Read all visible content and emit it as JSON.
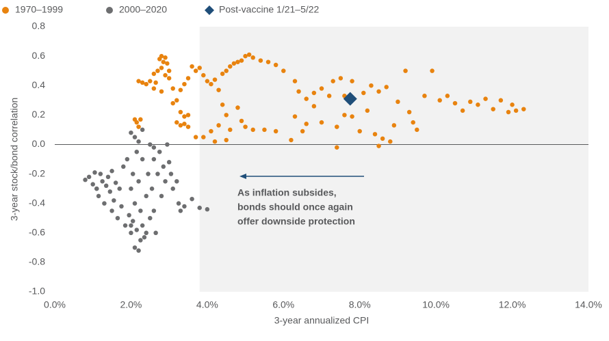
{
  "chart_data": {
    "type": "scatter",
    "xlabel": "3-year annualized CPI",
    "ylabel": "3-year stock/bond correlation",
    "xlim": [
      0,
      14
    ],
    "ylim": [
      -1,
      0.8
    ],
    "xticks": [
      {
        "value": 0,
        "label": "0.0%"
      },
      {
        "value": 2,
        "label": "2.0%"
      },
      {
        "value": 4,
        "label": "4.0%"
      },
      {
        "value": 6,
        "label": "6.0%"
      },
      {
        "value": 8,
        "label": "8.0%"
      },
      {
        "value": 10,
        "label": "10.0%"
      },
      {
        "value": 12,
        "label": "12.0%"
      },
      {
        "value": 14,
        "label": "14.0%"
      }
    ],
    "yticks": [
      0.8,
      0.6,
      0.4,
      0.2,
      {
        "value": 0,
        "label": "0.0"
      },
      -0.2,
      -0.4,
      -0.6,
      -0.8,
      {
        "value": -1,
        "label": "-1.0"
      }
    ],
    "shaded_xmin": 3.8,
    "annotation": [
      "As inflation subsides,",
      "bonds should once again",
      "offer downside protection"
    ],
    "series": [
      {
        "name": "1970–1999",
        "color": "#e8830f",
        "marker": "circle",
        "x": [
          2.1,
          2.15,
          2.2,
          2.25,
          2.3,
          2.4,
          2.5,
          2.2,
          2.6,
          2.7,
          2.75,
          2.8,
          2.85,
          2.9,
          2.95,
          3.0,
          2.8,
          2.9,
          2.65,
          3.0,
          2.6,
          2.8,
          3.1,
          3.2,
          3.1,
          3.3,
          3.4,
          3.5,
          3.6,
          3.7,
          3.8,
          3.9,
          4.0,
          4.1,
          4.2,
          4.3,
          4.4,
          4.5,
          4.6,
          4.7,
          4.8,
          4.9,
          5.0,
          5.1,
          5.2,
          5.4,
          5.6,
          5.8,
          6.0,
          3.2,
          3.3,
          3.4,
          3.5,
          3.7,
          3.3,
          3.4,
          3.5,
          3.9,
          4.1,
          4.2,
          4.3,
          4.5,
          4.6,
          4.5,
          4.4,
          4.8,
          4.9,
          5.0,
          5.2,
          5.5,
          5.8,
          6.3,
          6.5,
          6.6,
          6.8,
          6.3,
          6.4,
          6.6,
          6.8,
          7.0,
          7.2,
          7.3,
          7.5,
          7.6,
          7.8,
          7.0,
          7.4,
          7.6,
          7.8,
          8.0,
          8.2,
          8.4,
          8.6,
          8.8,
          8.9,
          8.1,
          8.3,
          8.5,
          8.7,
          9.0,
          9.2,
          9.3,
          9.4,
          9.5,
          9.7,
          9.9,
          10.1,
          10.3,
          10.5,
          10.7,
          10.9,
          11.1,
          11.3,
          11.5,
          11.7,
          11.9,
          12.0,
          12.1,
          12.3,
          7.4,
          8.5,
          6.2
        ],
        "values": [
          0.17,
          0.15,
          0.12,
          0.17,
          0.42,
          0.41,
          0.43,
          0.43,
          0.48,
          0.5,
          0.58,
          0.6,
          0.56,
          0.59,
          0.55,
          0.5,
          0.52,
          0.47,
          0.42,
          0.45,
          0.38,
          0.36,
          0.38,
          0.3,
          0.28,
          0.37,
          0.41,
          0.45,
          0.53,
          0.5,
          0.52,
          0.47,
          0.43,
          0.41,
          0.44,
          0.37,
          0.48,
          0.5,
          0.53,
          0.55,
          0.56,
          0.57,
          0.6,
          0.61,
          0.59,
          0.57,
          0.56,
          0.54,
          0.5,
          0.15,
          0.13,
          0.14,
          0.12,
          0.05,
          0.22,
          0.19,
          0.2,
          0.05,
          0.09,
          0.02,
          0.13,
          0.03,
          0.1,
          0.2,
          0.27,
          0.25,
          0.16,
          0.12,
          0.1,
          0.1,
          0.09,
          0.19,
          0.09,
          0.14,
          0.26,
          0.43,
          0.36,
          0.31,
          0.35,
          0.38,
          0.33,
          0.43,
          0.45,
          0.33,
          0.43,
          0.15,
          0.12,
          0.2,
          0.19,
          0.09,
          0.23,
          0.07,
          0.04,
          0.02,
          0.13,
          0.35,
          0.4,
          0.36,
          0.39,
          0.29,
          0.5,
          0.22,
          0.15,
          0.1,
          0.33,
          0.5,
          0.3,
          0.33,
          0.28,
          0.23,
          0.29,
          0.27,
          0.31,
          0.24,
          0.3,
          0.22,
          0.27,
          0.23,
          0.24,
          -0.02,
          -0.01,
          0.03
        ]
      },
      {
        "name": "2000–2020",
        "color": "#6d6e70",
        "marker": "circle",
        "x": [
          0.8,
          0.9,
          1.0,
          1.05,
          1.1,
          1.15,
          1.2,
          1.25,
          1.3,
          1.35,
          1.4,
          1.45,
          1.5,
          1.55,
          1.6,
          1.65,
          1.7,
          1.75,
          1.8,
          1.85,
          1.9,
          1.95,
          2.0,
          2.0,
          2.05,
          2.05,
          2.1,
          2.1,
          2.15,
          2.15,
          2.2,
          2.2,
          2.25,
          2.25,
          2.3,
          2.3,
          2.35,
          2.4,
          2.45,
          2.5,
          2.5,
          2.55,
          2.6,
          2.6,
          2.65,
          2.7,
          2.75,
          2.8,
          2.85,
          2.9,
          2.95,
          3.0,
          3.05,
          3.1,
          3.2,
          3.25,
          3.3,
          3.4,
          3.6,
          3.8,
          4.0,
          2.0,
          2.1,
          2.3,
          2.6,
          2.2,
          1.5,
          1.1,
          2.4,
          2.0
        ],
        "values": [
          -0.24,
          -0.22,
          -0.27,
          -0.19,
          -0.3,
          -0.35,
          -0.2,
          -0.25,
          -0.4,
          -0.28,
          -0.22,
          -0.32,
          -0.18,
          -0.38,
          -0.26,
          -0.5,
          -0.3,
          -0.42,
          -0.15,
          -0.55,
          -0.1,
          -0.48,
          -0.3,
          -0.6,
          -0.2,
          -0.52,
          -0.7,
          -0.4,
          -0.05,
          -0.58,
          -0.72,
          -0.25,
          -0.65,
          -0.45,
          -0.55,
          -0.1,
          -0.63,
          -0.35,
          -0.2,
          -0.5,
          0.0,
          -0.3,
          -0.45,
          -0.1,
          -0.6,
          -0.2,
          -0.05,
          -0.35,
          -0.15,
          -0.25,
          0.0,
          -0.12,
          -0.2,
          -0.3,
          -0.25,
          -0.4,
          -0.45,
          -0.42,
          -0.37,
          -0.43,
          -0.44,
          0.08,
          0.05,
          0.1,
          -0.02,
          0.02,
          -0.45,
          -0.3,
          -0.6,
          -0.55
        ]
      },
      {
        "name": "Post-vaccine 1/21–5/22",
        "color": "#1f4e79",
        "marker": "diamond",
        "x": [
          7.75
        ],
        "values": [
          0.31
        ]
      }
    ]
  }
}
